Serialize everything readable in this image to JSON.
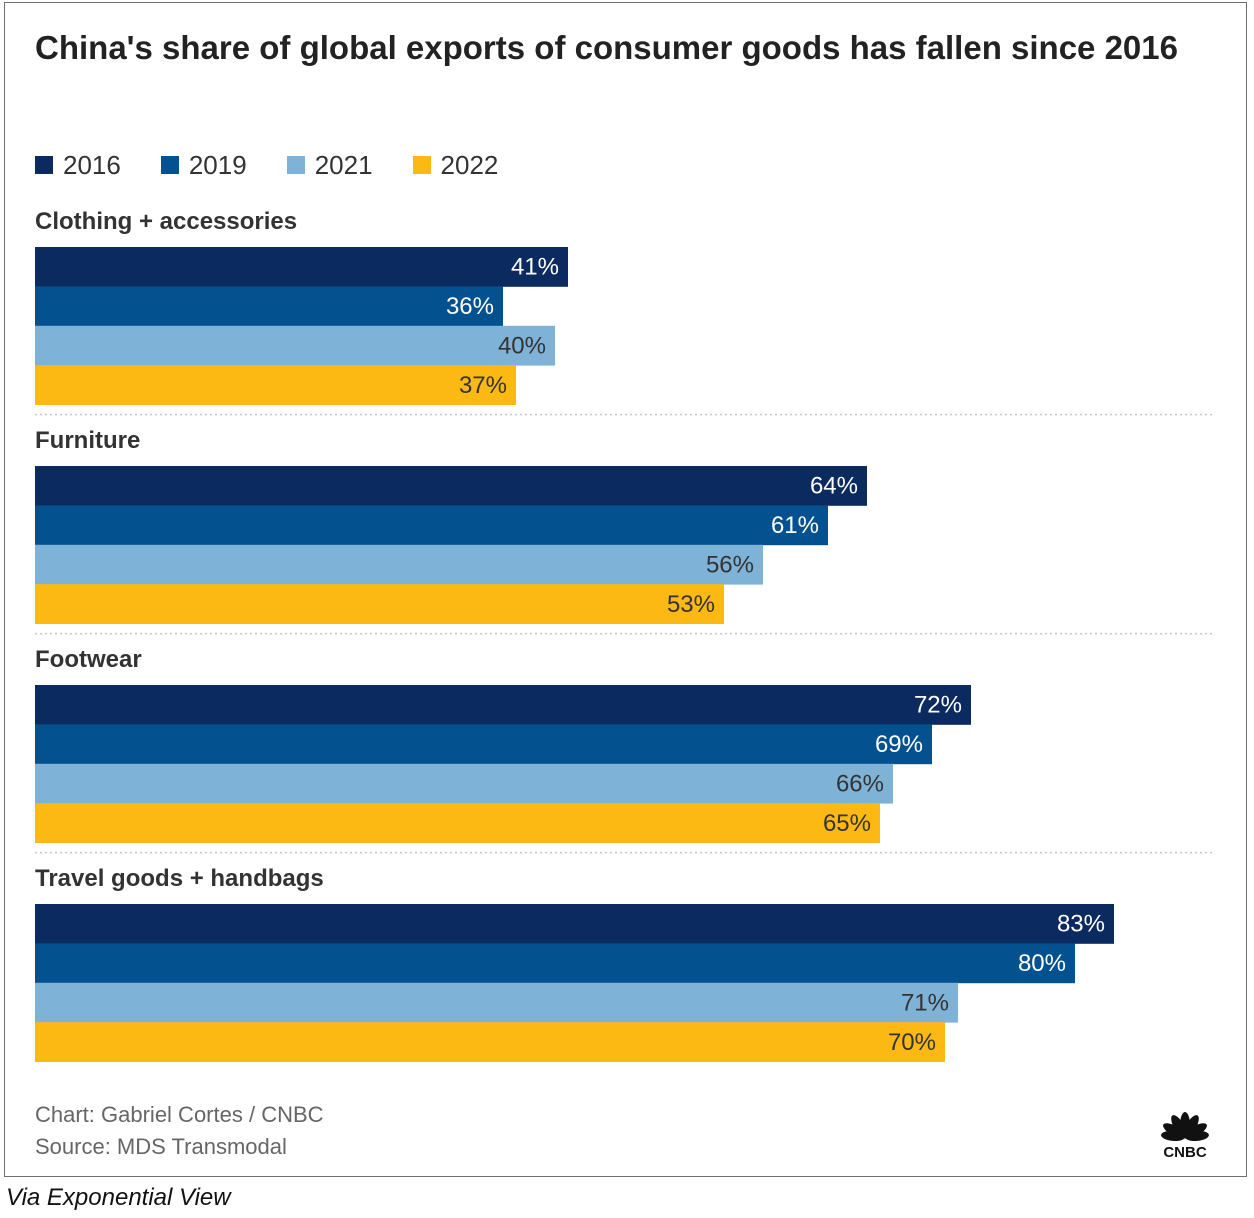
{
  "chart_data": {
    "type": "bar",
    "orientation": "horizontal",
    "title": "China's share of global exports of consumer goods has fallen since 2016",
    "categories": [
      "Clothing + accessories",
      "Furniture",
      "Footwear",
      "Travel goods + handbags"
    ],
    "series": [
      {
        "name": "2016",
        "color": "#0b2a5f",
        "label_color": "#ffffff",
        "values": [
          41,
          64,
          72,
          83
        ],
        "labels": [
          "41%",
          "64%",
          "72%",
          "83%"
        ]
      },
      {
        "name": "2019",
        "color": "#03528f",
        "label_color": "#ffffff",
        "values": [
          36,
          61,
          69,
          80
        ],
        "labels": [
          "36%",
          "61%",
          "69%",
          "80%"
        ]
      },
      {
        "name": "2021",
        "color": "#7fb2d7",
        "label_color": "#333333",
        "values": [
          40,
          56,
          66,
          71
        ],
        "labels": [
          "40%",
          "56%",
          "66%",
          "71%"
        ]
      },
      {
        "name": "2022",
        "color": "#fdb913",
        "label_color": "#333333",
        "values": [
          37,
          53,
          65,
          70
        ],
        "labels": [
          "37%",
          "53%",
          "65%",
          "70%"
        ]
      }
    ],
    "unit": "%",
    "legend_position": "top-left",
    "grid": false,
    "xlim": [
      0,
      90
    ]
  },
  "credits": {
    "chart": "Chart: Gabriel Cortes / CNBC",
    "source": "Source: MDS Transmodal"
  },
  "logo": {
    "icon": "cnbc-peacock-icon",
    "text": "CNBC"
  },
  "caption": "Via Exponential View"
}
